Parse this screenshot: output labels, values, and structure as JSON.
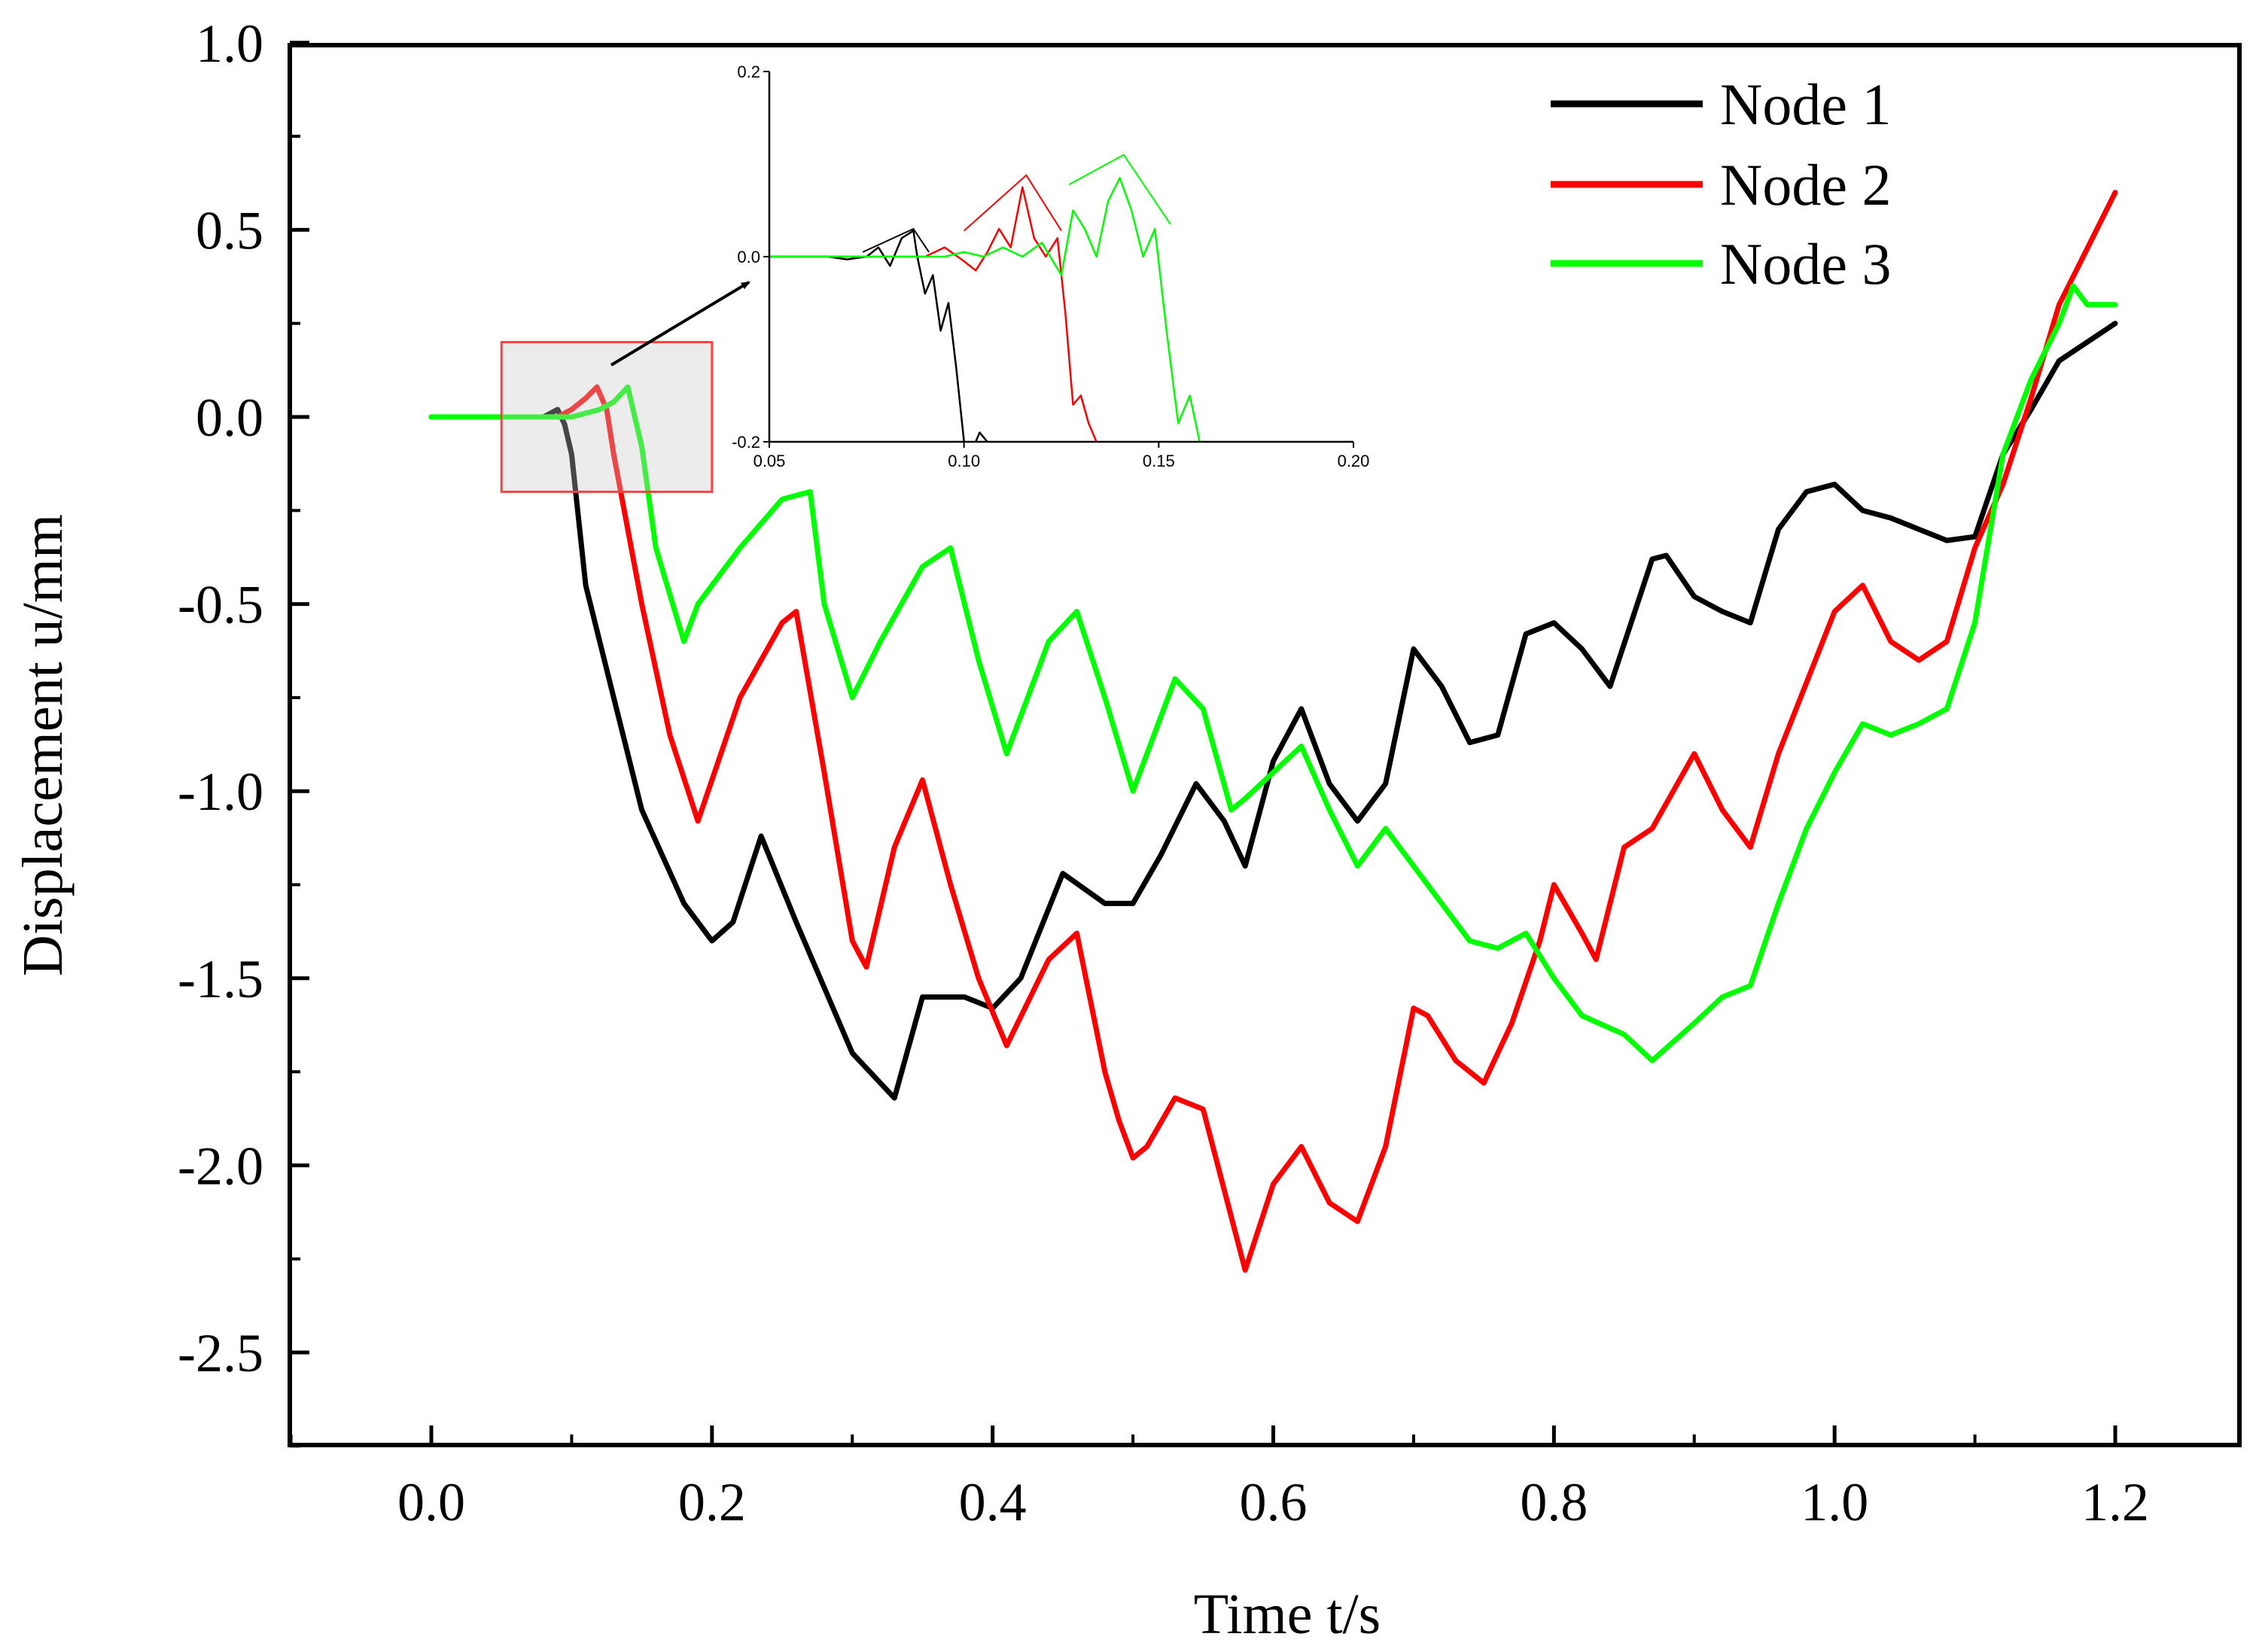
{
  "chart_data": [
    {
      "type": "line",
      "xlabel": "Time t/s",
      "ylabel": "Displacement u/mm",
      "xlim": [
        -0.1,
        1.25
      ],
      "ylim": [
        -2.75,
        1.0
      ],
      "xticks": [
        0.0,
        0.2,
        0.4,
        0.6,
        0.8,
        1.0,
        1.2
      ],
      "xtick_labels": [
        "0.0",
        "0.2",
        "0.4",
        "0.6",
        "0.8",
        "1.0",
        "1.2"
      ],
      "yticks": [
        1.0,
        0.5,
        0.0,
        -0.5,
        -1.0,
        -1.5,
        -2.0,
        -2.5
      ],
      "ytick_labels": [
        "1.0",
        "0.5",
        "0.0",
        "-0.5",
        "-1.0",
        "-1.5",
        "-2.0",
        "-2.5"
      ],
      "legend_position": "top-right",
      "series": [
        {
          "name": "Node 1",
          "color": "#000000",
          "x": [
            0.0,
            0.05,
            0.08,
            0.09,
            0.095,
            0.1,
            0.11,
            0.13,
            0.15,
            0.18,
            0.2,
            0.215,
            0.235,
            0.26,
            0.3,
            0.33,
            0.35,
            0.38,
            0.4,
            0.42,
            0.45,
            0.48,
            0.5,
            0.52,
            0.545,
            0.565,
            0.58,
            0.6,
            0.62,
            0.64,
            0.66,
            0.68,
            0.7,
            0.72,
            0.74,
            0.76,
            0.78,
            0.8,
            0.82,
            0.84,
            0.87,
            0.88,
            0.9,
            0.92,
            0.94,
            0.96,
            0.98,
            1.0,
            1.02,
            1.04,
            1.06,
            1.08,
            1.1,
            1.12,
            1.14,
            1.16,
            1.18,
            1.2
          ],
          "y": [
            0.0,
            0.0,
            0.0,
            0.02,
            -0.02,
            -0.1,
            -0.45,
            -0.75,
            -1.05,
            -1.3,
            -1.4,
            -1.35,
            -1.12,
            -1.35,
            -1.7,
            -1.82,
            -1.55,
            -1.55,
            -1.58,
            -1.5,
            -1.22,
            -1.3,
            -1.3,
            -1.17,
            -0.98,
            -1.08,
            -1.2,
            -0.92,
            -0.78,
            -0.98,
            -1.08,
            -0.98,
            -0.62,
            -0.72,
            -0.87,
            -0.85,
            -0.58,
            -0.55,
            -0.62,
            -0.72,
            -0.38,
            -0.37,
            -0.48,
            -0.52,
            -0.55,
            -0.3,
            -0.2,
            -0.18,
            -0.25,
            -0.27,
            -0.3,
            -0.33,
            -0.32,
            -0.1,
            0.02,
            0.15,
            0.2,
            0.25
          ]
        },
        {
          "name": "Node 2",
          "color": "#ff0000",
          "x": [
            0.0,
            0.09,
            0.1,
            0.11,
            0.118,
            0.125,
            0.13,
            0.15,
            0.17,
            0.19,
            0.22,
            0.25,
            0.26,
            0.28,
            0.3,
            0.31,
            0.33,
            0.35,
            0.37,
            0.39,
            0.41,
            0.44,
            0.46,
            0.48,
            0.49,
            0.5,
            0.51,
            0.53,
            0.55,
            0.58,
            0.6,
            0.62,
            0.64,
            0.66,
            0.68,
            0.7,
            0.71,
            0.73,
            0.75,
            0.77,
            0.79,
            0.8,
            0.82,
            0.83,
            0.85,
            0.87,
            0.9,
            0.92,
            0.94,
            0.96,
            1.0,
            1.02,
            1.04,
            1.06,
            1.08,
            1.1,
            1.12,
            1.14,
            1.16,
            1.18,
            1.2
          ],
          "y": [
            0.0,
            0.0,
            0.02,
            0.05,
            0.08,
            0.02,
            -0.1,
            -0.5,
            -0.85,
            -1.08,
            -0.75,
            -0.55,
            -0.52,
            -0.95,
            -1.4,
            -1.47,
            -1.15,
            -0.97,
            -1.25,
            -1.5,
            -1.68,
            -1.45,
            -1.38,
            -1.75,
            -1.88,
            -1.98,
            -1.95,
            -1.82,
            -1.85,
            -2.28,
            -2.05,
            -1.95,
            -2.1,
            -2.15,
            -1.95,
            -1.58,
            -1.6,
            -1.72,
            -1.78,
            -1.62,
            -1.4,
            -1.25,
            -1.38,
            -1.45,
            -1.15,
            -1.1,
            -0.9,
            -1.05,
            -1.15,
            -0.9,
            -0.52,
            -0.45,
            -0.6,
            -0.65,
            -0.6,
            -0.35,
            -0.18,
            0.05,
            0.3,
            0.45,
            0.6
          ]
        },
        {
          "name": "Node 3",
          "color": "#00ff00",
          "x": [
            0.0,
            0.1,
            0.12,
            0.13,
            0.14,
            0.15,
            0.16,
            0.18,
            0.19,
            0.22,
            0.25,
            0.27,
            0.28,
            0.3,
            0.32,
            0.35,
            0.37,
            0.39,
            0.41,
            0.44,
            0.46,
            0.48,
            0.5,
            0.53,
            0.55,
            0.57,
            0.58,
            0.6,
            0.62,
            0.64,
            0.66,
            0.68,
            0.7,
            0.72,
            0.74,
            0.76,
            0.78,
            0.8,
            0.82,
            0.85,
            0.87,
            0.9,
            0.92,
            0.94,
            0.96,
            0.98,
            1.0,
            1.02,
            1.04,
            1.06,
            1.08,
            1.1,
            1.12,
            1.14,
            1.16,
            1.17,
            1.18,
            1.2
          ],
          "y": [
            0.0,
            0.0,
            0.02,
            0.04,
            0.08,
            -0.08,
            -0.35,
            -0.6,
            -0.5,
            -0.35,
            -0.22,
            -0.2,
            -0.5,
            -0.75,
            -0.6,
            -0.4,
            -0.35,
            -0.65,
            -0.9,
            -0.6,
            -0.52,
            -0.75,
            -1.0,
            -0.7,
            -0.78,
            -1.05,
            -1.02,
            -0.95,
            -0.88,
            -1.05,
            -1.2,
            -1.1,
            -1.2,
            -1.3,
            -1.4,
            -1.42,
            -1.38,
            -1.5,
            -1.6,
            -1.65,
            -1.72,
            -1.62,
            -1.55,
            -1.52,
            -1.3,
            -1.1,
            -0.95,
            -0.82,
            -0.85,
            -0.82,
            -0.78,
            -0.55,
            -0.1,
            0.1,
            0.25,
            0.35,
            0.3,
            0.3
          ]
        }
      ],
      "highlight_box": {
        "x_range": [
          0.05,
          0.2
        ],
        "y_range": [
          -0.2,
          0.2
        ]
      }
    },
    {
      "type": "line",
      "role": "inset",
      "xlim": [
        0.05,
        0.2
      ],
      "ylim": [
        -0.2,
        0.2
      ],
      "xticks": [
        0.05,
        0.1,
        0.15,
        0.2
      ],
      "xtick_labels": [
        "0.05",
        "0.10",
        "0.15",
        "0.20"
      ],
      "yticks": [
        0.2,
        0.0,
        -0.2
      ],
      "ytick_labels": [
        "0.2",
        "0.0",
        "-0.2"
      ],
      "series": [
        {
          "name": "Node 1",
          "color": "#000000",
          "x": [
            0.05,
            0.065,
            0.07,
            0.075,
            0.078,
            0.081,
            0.084,
            0.087,
            0.088,
            0.09,
            0.092,
            0.094,
            0.096,
            0.098,
            0.1,
            0.102,
            0.104,
            0.106,
            0.108
          ],
          "y": [
            0.0,
            0.0,
            -0.003,
            0.0,
            0.01,
            -0.01,
            0.02,
            0.028,
            0.0,
            -0.04,
            -0.02,
            -0.08,
            -0.05,
            -0.12,
            -0.2,
            -0.21,
            -0.19,
            -0.2,
            -0.21
          ]
        },
        {
          "name": "Node 2",
          "color": "#ff0000",
          "x": [
            0.05,
            0.09,
            0.095,
            0.1,
            0.103,
            0.106,
            0.109,
            0.112,
            0.115,
            0.118,
            0.121,
            0.124,
            0.126,
            0.128,
            0.13,
            0.132,
            0.134,
            0.135
          ],
          "y": [
            0.0,
            0.0,
            0.01,
            -0.005,
            -0.015,
            0.005,
            0.03,
            0.01,
            0.075,
            0.02,
            0.0,
            0.02,
            -0.06,
            -0.16,
            -0.15,
            -0.18,
            -0.2,
            -0.21
          ]
        },
        {
          "name": "Node 3",
          "color": "#00ff00",
          "x": [
            0.05,
            0.095,
            0.1,
            0.105,
            0.11,
            0.115,
            0.12,
            0.125,
            0.128,
            0.131,
            0.134,
            0.137,
            0.14,
            0.143,
            0.146,
            0.149,
            0.152,
            0.155,
            0.158,
            0.161
          ],
          "y": [
            0.0,
            0.0,
            0.005,
            0.0,
            0.01,
            0.0,
            0.015,
            -0.02,
            0.05,
            0.03,
            0.0,
            0.06,
            0.085,
            0.05,
            0.0,
            0.03,
            -0.08,
            -0.18,
            -0.15,
            -0.21
          ]
        }
      ]
    }
  ]
}
